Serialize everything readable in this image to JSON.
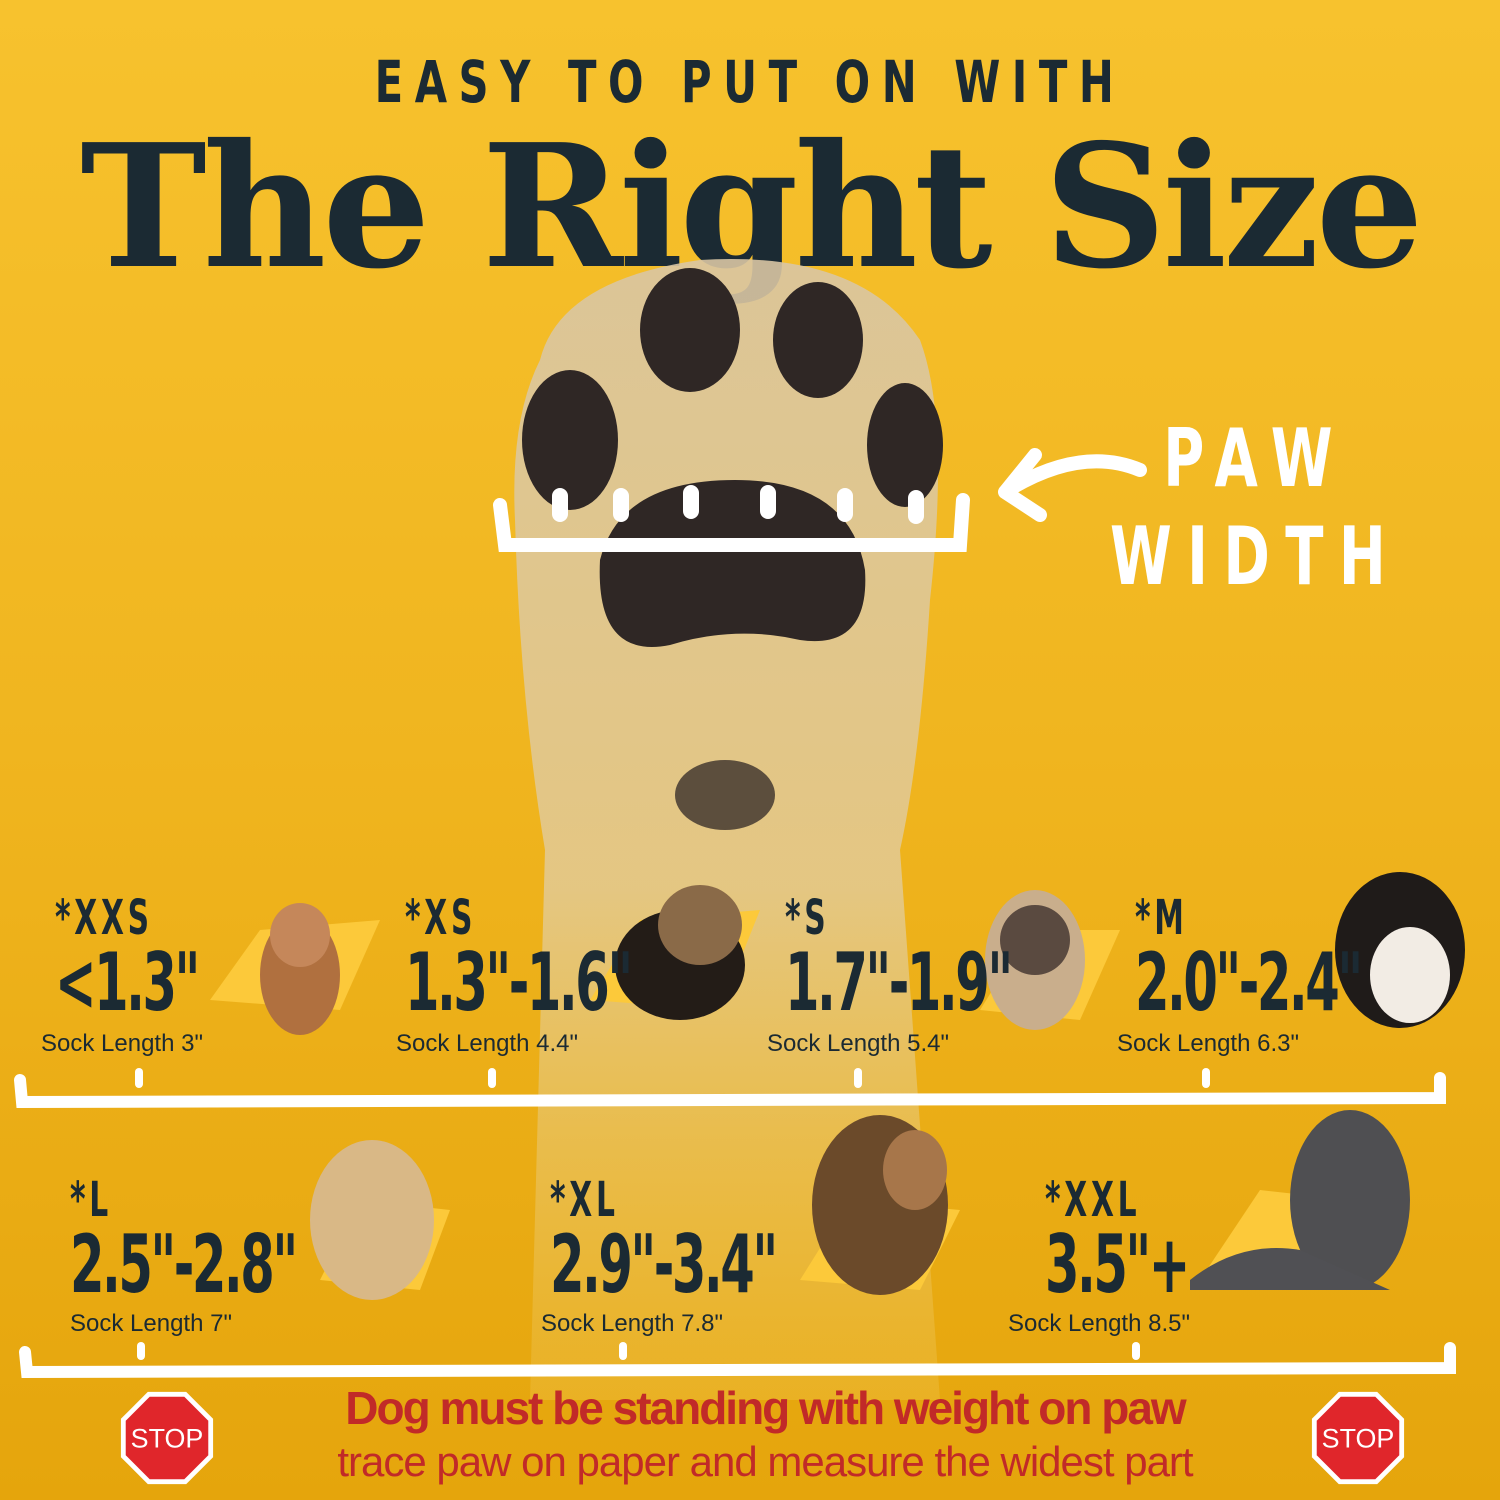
{
  "header": {
    "kicker": "EASY TO PUT ON WITH",
    "title": "The Right Size"
  },
  "paw_label": {
    "line1": "PAW",
    "line2": "WIDTH"
  },
  "sizes_row1": [
    {
      "code": "*XXS",
      "range": "<1.3\"",
      "sock": "Sock Length 3\"",
      "dog": "chihuahua"
    },
    {
      "code": "*XS",
      "range": "1.3\"-1.6\"",
      "sock": "Sock Length 4.4\"",
      "dog": "yorkshire-terrier"
    },
    {
      "code": "*S",
      "range": "1.7\"-1.9\"",
      "sock": "Sock Length 5.4\"",
      "dog": "french-bulldog"
    },
    {
      "code": "*M",
      "range": "2.0\"-2.4\"",
      "sock": "Sock Length 6.3\"",
      "dog": "bernese-mountain-dog"
    }
  ],
  "sizes_row2": [
    {
      "code": "*L",
      "range": "2.5\"-2.8\"",
      "sock": "Sock Length 7\"",
      "dog": "golden-retriever"
    },
    {
      "code": "*XL",
      "range": "2.9\"-3.4\"",
      "sock": "Sock Length 7.8\"",
      "dog": "german-shepherd"
    },
    {
      "code": "*XXL",
      "range": "3.5\"+",
      "sock": "Sock Length 8.5\"",
      "dog": "great-dane"
    }
  ],
  "warning": {
    "line1": "Dog must be standing with weight on paw",
    "line2": "trace paw on paper and measure the widest part",
    "stop_label": "STOP"
  },
  "colors": {
    "background": "#f0b51f",
    "text": "#1b2a33",
    "warning": "#c12a28",
    "stop": "#e0262b"
  }
}
